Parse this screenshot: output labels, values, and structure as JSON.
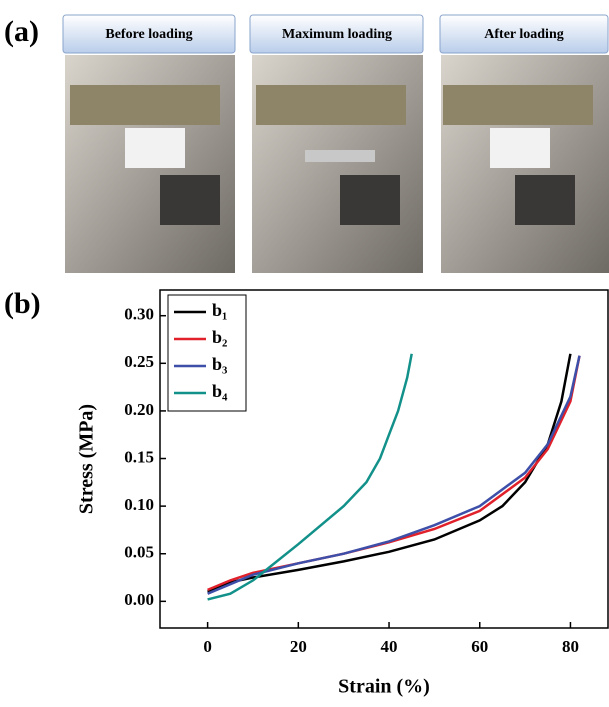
{
  "figure": {
    "panel_labels": [
      "(a)",
      "(b)"
    ],
    "photo_captions": [
      "Before loading",
      "Maximum loading",
      "After loading"
    ]
  },
  "chart_data": {
    "type": "line",
    "x_label": "Strain (%)",
    "y_label": "Stress (MPa)",
    "xlim": [
      -10.5,
      88.5
    ],
    "ylim": [
      -0.028,
      0.327
    ],
    "xticks": [
      0,
      20,
      40,
      60,
      80
    ],
    "yticks": [
      {
        "value": 0,
        "label": "0.00"
      },
      {
        "value": 0.05,
        "label": "0.05"
      },
      {
        "value": 0.1,
        "label": "0.10"
      },
      {
        "value": 0.15,
        "label": "0.15"
      },
      {
        "value": 0.2,
        "label": "0.20"
      },
      {
        "value": 0.25,
        "label": "0.25"
      },
      {
        "value": 0.3,
        "label": "0.30"
      }
    ],
    "legend": "upper left",
    "series": [
      {
        "name": "b₁",
        "color": "#000000",
        "x": [
          0,
          5,
          10,
          20,
          30,
          40,
          50,
          60,
          65,
          70,
          75,
          78,
          80
        ],
        "values": [
          0.01,
          0.02,
          0.025,
          0.033,
          0.042,
          0.052,
          0.065,
          0.085,
          0.1,
          0.125,
          0.165,
          0.21,
          0.26
        ]
      },
      {
        "name": "b₂",
        "color": "#e0202a",
        "x": [
          0,
          5,
          10,
          20,
          30,
          40,
          50,
          60,
          70,
          75,
          80,
          82
        ],
        "values": [
          0.012,
          0.022,
          0.03,
          0.04,
          0.05,
          0.062,
          0.076,
          0.095,
          0.13,
          0.16,
          0.21,
          0.258
        ]
      },
      {
        "name": "b₃",
        "color": "#3d4fa8",
        "x": [
          0,
          10,
          20,
          30,
          40,
          50,
          60,
          70,
          75,
          80,
          82
        ],
        "values": [
          0.008,
          0.028,
          0.04,
          0.05,
          0.063,
          0.08,
          0.1,
          0.135,
          0.165,
          0.215,
          0.258
        ]
      },
      {
        "name": "b₄",
        "color": "#12918a",
        "x": [
          0,
          5,
          10,
          20,
          30,
          35,
          38,
          40,
          42,
          44,
          45
        ],
        "values": [
          0.002,
          0.008,
          0.022,
          0.06,
          0.1,
          0.125,
          0.15,
          0.175,
          0.2,
          0.235,
          0.26
        ]
      }
    ]
  }
}
